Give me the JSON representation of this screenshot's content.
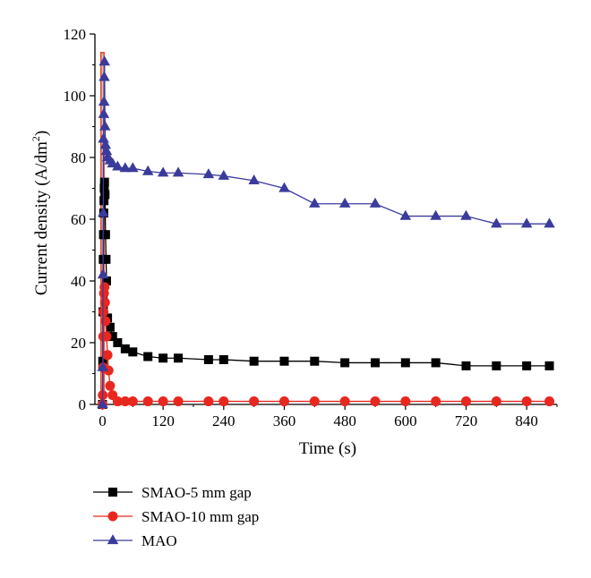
{
  "chart_data": {
    "type": "line",
    "title": "",
    "xlabel": "Time (s)",
    "ylabel": "Current density (A/dm",
    "ylabel_sup": "2",
    "ylabel_suffix": ")",
    "xlim": [
      -15,
      900
    ],
    "ylim": [
      0,
      120
    ],
    "xticks": [
      0,
      120,
      240,
      360,
      480,
      600,
      720,
      840
    ],
    "yticks": [
      0,
      20,
      40,
      60,
      80,
      100,
      120
    ],
    "grid": false,
    "legend_position": "bottom-left, below plot",
    "highlight_box": {
      "x_range": [
        -3,
        3
      ],
      "y_range": [
        0,
        114
      ],
      "fill": "#c8c8c8",
      "stroke": "#e8442c"
    },
    "series": [
      {
        "name": "SMAO-5 mm gap",
        "color": "#000000",
        "marker": "square",
        "x": [
          0,
          0.5,
          1,
          1.5,
          2,
          2.5,
          3,
          3.5,
          4,
          5,
          6,
          7,
          8,
          10,
          15,
          20,
          30,
          45,
          60,
          90,
          120,
          150,
          210,
          240,
          300,
          360,
          420,
          480,
          540,
          600,
          660,
          720,
          780,
          840,
          885
        ],
        "y": [
          0,
          14,
          30,
          47,
          55,
          62,
          66,
          70,
          72,
          68,
          55,
          47,
          40,
          28,
          25,
          22,
          20,
          18,
          17,
          15.5,
          15,
          15,
          14.5,
          14.5,
          14,
          14,
          14,
          13.5,
          13.5,
          13.5,
          13.5,
          12.5,
          12.5,
          12.5,
          12.5
        ]
      },
      {
        "name": "SMAO-10 mm gap",
        "color": "#e8271f",
        "marker": "circle",
        "x": [
          0,
          0.5,
          1,
          1.5,
          2,
          3,
          4,
          5,
          6,
          8,
          10,
          12,
          15,
          20,
          30,
          45,
          60,
          90,
          120,
          150,
          210,
          240,
          300,
          360,
          420,
          480,
          540,
          600,
          660,
          720,
          780,
          840,
          885
        ],
        "y": [
          0,
          3,
          12,
          22,
          30,
          36,
          38,
          33,
          27,
          22,
          16,
          11,
          6,
          3,
          1,
          1,
          1,
          1,
          1,
          1,
          1,
          1,
          1,
          1,
          1,
          1,
          1,
          1,
          1,
          1,
          1,
          1,
          1
        ]
      },
      {
        "name": "MAO",
        "color": "#3b3b9c",
        "marker": "triangle",
        "x": [
          0,
          0.5,
          1,
          1.5,
          2,
          2.5,
          3,
          3.5,
          4,
          5,
          6,
          8,
          10,
          15,
          20,
          30,
          45,
          60,
          90,
          120,
          150,
          210,
          240,
          300,
          360,
          420,
          480,
          540,
          600,
          660,
          720,
          780,
          840,
          885
        ],
        "y": [
          0,
          12,
          42,
          62,
          86,
          94,
          98,
          106,
          111,
          90,
          84,
          82,
          80,
          79,
          78,
          77,
          76.5,
          76.5,
          75.5,
          75,
          75,
          74.5,
          74,
          72.5,
          70,
          65,
          65,
          65,
          61,
          61,
          61,
          58.5,
          58.5,
          58.5
        ]
      }
    ]
  }
}
